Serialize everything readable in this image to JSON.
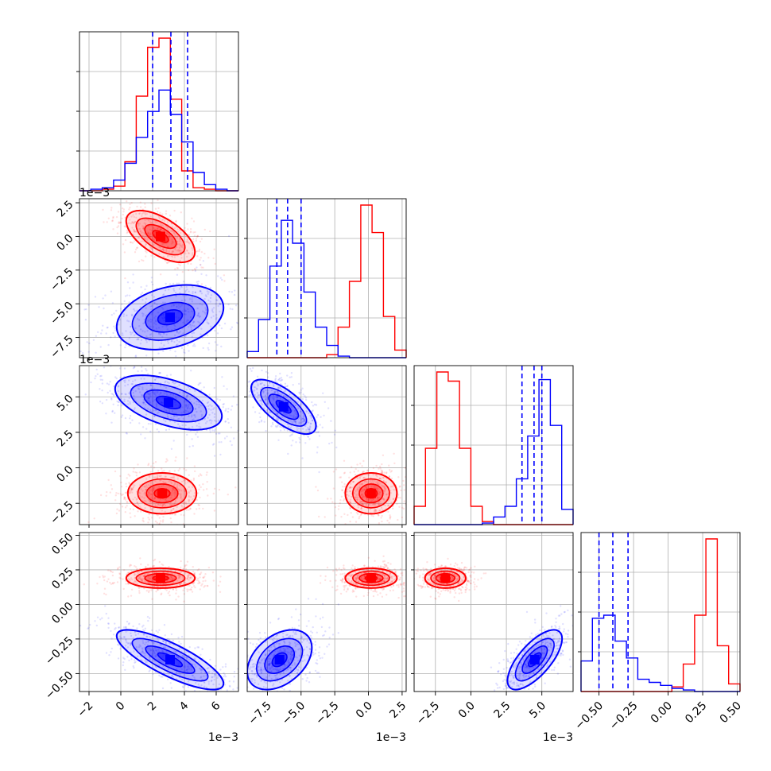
{
  "chart_data": {
    "type": "corner",
    "xlabel": "",
    "ylabel": "",
    "grid": true,
    "legend": "none",
    "colors": {
      "series_a": "#ff0000",
      "series_b": "#0000ff"
    },
    "parameters": [
      {
        "range": [
          -0.0026,
          0.0074
        ],
        "ticks": [
          -2,
          0,
          2,
          4,
          6
        ],
        "tick_labels": [
          "−2",
          "0",
          "2",
          "4",
          "6"
        ],
        "offset_label": "1e−3"
      },
      {
        "range": [
          -0.009,
          0.0028
        ],
        "ticks": [
          -7.5,
          -5.0,
          -2.5,
          0.0,
          2.5
        ],
        "tick_labels": [
          "−7.5",
          "−5.0",
          "−2.5",
          "0.0",
          "2.5"
        ],
        "offset_label": "1e−3"
      },
      {
        "range": [
          -0.004,
          0.0072
        ],
        "ticks": [
          -2.5,
          0.0,
          2.5,
          5.0
        ],
        "tick_labels": [
          "−2.5",
          "0.0",
          "2.5",
          "5.0"
        ],
        "offset_label": "1e−3"
      },
      {
        "range": [
          -0.63,
          0.52
        ],
        "ticks": [
          -0.5,
          -0.25,
          0.0,
          0.25,
          0.5
        ],
        "tick_labels": [
          "−0.50",
          "−0.25",
          "0.00",
          "0.25",
          "0.50"
        ],
        "offset_label": ""
      }
    ],
    "series": [
      {
        "color": "#ff0000",
        "means": [
          0.0025,
          0.0,
          -0.0018,
          0.19
        ],
        "sds": [
          0.0009,
          0.0008,
          0.0006,
          0.03
        ],
        "histograms": [
          [
            0,
            0,
            0.01,
            0.03,
            0.19,
            0.62,
            0.94,
            1.0,
            0.6,
            0.13,
            0.02,
            0.01,
            0,
            0
          ],
          [
            0,
            0,
            0,
            0,
            0,
            0,
            0,
            0.02,
            0.2,
            0.5,
            1.0,
            0.82,
            0.27,
            0.05
          ],
          [
            0.12,
            0.5,
            1.0,
            0.94,
            0.5,
            0.12,
            0.02,
            0,
            0,
            0,
            0,
            0,
            0,
            0
          ],
          [
            0,
            0,
            0,
            0,
            0,
            0,
            0,
            0,
            0.03,
            0.18,
            0.5,
            1.0,
            0.3,
            0.05
          ]
        ],
        "hist_bins": [
          [
            -0.0026,
            0.0074
          ],
          [
            -0.009,
            0.0028
          ],
          [
            -0.004,
            0.0072
          ],
          [
            -0.63,
            0.52
          ]
        ]
      },
      {
        "color": "#0000ff",
        "means": [
          0.0031,
          -0.006,
          0.0045,
          -0.4
        ],
        "sds": [
          0.0014,
          0.001,
          0.0008,
          0.09
        ],
        "quantiles": [
          [
            0.002,
            0.00315,
            0.0042
          ],
          [
            -0.0068,
            -0.006,
            -0.005
          ],
          [
            0.0036,
            0.00445,
            0.005
          ],
          [
            -0.5,
            -0.4,
            -0.29
          ]
        ],
        "histograms": [
          [
            0,
            0.01,
            0.02,
            0.07,
            0.18,
            0.35,
            0.52,
            0.66,
            0.5,
            0.32,
            0.12,
            0.04,
            0.01,
            0
          ],
          [
            0.04,
            0.25,
            0.6,
            0.9,
            0.75,
            0.43,
            0.2,
            0.08,
            0.01,
            0,
            0,
            0,
            0,
            0
          ],
          [
            0,
            0,
            0,
            0,
            0,
            0,
            0.01,
            0.05,
            0.12,
            0.3,
            0.58,
            0.95,
            0.65,
            0.1
          ],
          [
            0.2,
            0.48,
            0.5,
            0.33,
            0.22,
            0.08,
            0.06,
            0.04,
            0.02,
            0.01,
            0,
            0,
            0,
            0
          ]
        ]
      }
    ],
    "scatter_shapes": [
      {
        "pair": [
          1,
          0
        ],
        "red": {
          "center": [
            0.0025,
            0.0
          ],
          "corr": -0.6
        },
        "blue": {
          "center": [
            0.0031,
            -0.006
          ],
          "corr": 0.3
        }
      },
      {
        "pair": [
          2,
          0
        ],
        "red": {
          "center": [
            0.0026,
            -0.0018
          ],
          "corr": 0.0
        },
        "blue": {
          "center": [
            0.003,
            0.0046
          ],
          "corr": -0.5
        }
      },
      {
        "pair": [
          2,
          1
        ],
        "red": {
          "center": [
            0.0002,
            -0.0018
          ],
          "corr": 0.0
        },
        "blue": {
          "center": [
            -0.0063,
            0.0043
          ],
          "corr": -0.7
        }
      },
      {
        "pair": [
          3,
          0
        ],
        "red": {
          "center": [
            0.0025,
            0.19
          ],
          "corr": 0.0
        },
        "blue": {
          "center": [
            0.0031,
            -0.4
          ],
          "corr": -0.8
        }
      },
      {
        "pair": [
          3,
          1
        ],
        "red": {
          "center": [
            0.0002,
            0.19
          ],
          "corr": 0.0
        },
        "blue": {
          "center": [
            -0.0066,
            -0.4
          ],
          "corr": 0.4
        }
      },
      {
        "pair": [
          3,
          2
        ],
        "red": {
          "center": [
            -0.0018,
            0.19
          ],
          "corr": 0.0
        },
        "blue": {
          "center": [
            0.0045,
            -0.4
          ],
          "corr": 0.7
        }
      }
    ]
  }
}
